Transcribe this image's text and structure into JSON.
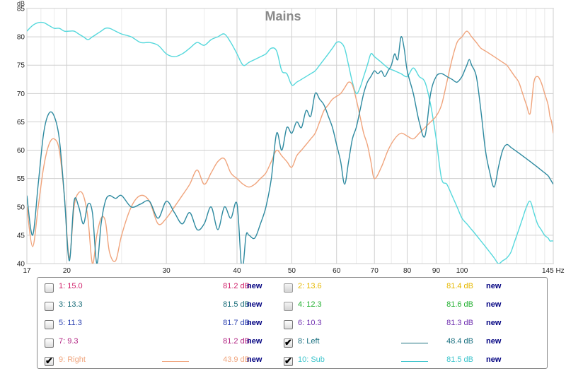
{
  "chart_data": {
    "type": "line",
    "title": "Mains",
    "ylabel": "dB",
    "xlim": [
      17,
      145
    ],
    "ylim": [
      40,
      85
    ],
    "x_scale": "log",
    "grid": true,
    "x_ticks": [
      17,
      20,
      30,
      40,
      50,
      60,
      70,
      80,
      90,
      100,
      145
    ],
    "x_tick_labels": [
      "17",
      "20",
      "30",
      "40",
      "50",
      "60",
      "70",
      "80",
      "90",
      "100",
      "145 Hz"
    ],
    "y_ticks": [
      40,
      45,
      50,
      55,
      60,
      65,
      70,
      75,
      80,
      85
    ],
    "y_tick_labels": [
      "40",
      "45",
      "50",
      "55",
      "60",
      "65",
      "70",
      "75",
      "80",
      "85"
    ],
    "series": [
      {
        "name": "8: Left",
        "color": "#2e8aa0",
        "x": [
          17,
          17.4,
          17.8,
          18.2,
          18.6,
          19,
          19.4,
          19.8,
          20.2,
          20.6,
          21,
          21.4,
          21.8,
          22.2,
          22.6,
          23,
          23.4,
          23.8,
          24.4,
          25,
          26,
          27,
          28,
          29,
          30,
          31,
          32,
          33,
          34,
          35,
          36,
          37,
          38,
          39,
          40,
          40.8,
          41.5,
          42,
          43,
          44,
          45,
          46,
          47,
          48,
          49,
          50,
          51,
          52,
          53,
          54,
          55,
          56,
          57,
          58,
          59,
          60,
          61,
          62,
          63,
          64,
          65,
          66,
          67,
          68,
          69,
          70,
          71,
          72,
          73,
          74,
          75,
          76,
          77,
          78,
          79,
          80,
          82,
          84,
          86,
          88,
          90,
          92,
          94,
          96,
          98,
          100,
          101,
          102,
          103,
          104,
          106,
          108,
          110,
          112,
          114,
          116,
          118,
          120,
          122,
          124,
          126,
          128,
          130,
          132,
          134,
          136,
          138,
          140,
          142,
          143,
          144,
          145
        ],
        "y": [
          52,
          45,
          54,
          63,
          66.5,
          66,
          62,
          52,
          40.5,
          51,
          50,
          47,
          50.5,
          49,
          40,
          47,
          51,
          52,
          51.5,
          52,
          50,
          50.5,
          51,
          48,
          51,
          49,
          47,
          49,
          46,
          47,
          50,
          46,
          50,
          48,
          50.5,
          39,
          45,
          45,
          44.5,
          47,
          50,
          55,
          63,
          60,
          64,
          63,
          65,
          64,
          67,
          66,
          70,
          69,
          68,
          66,
          64,
          61,
          58,
          54,
          58,
          62,
          64,
          67,
          70,
          72,
          73,
          74,
          73.5,
          74,
          73,
          74,
          75,
          77,
          76,
          80,
          78,
          74,
          70,
          65,
          62.5,
          70,
          73,
          73.5,
          73,
          72.5,
          72,
          73,
          74,
          75,
          76,
          75,
          73,
          67,
          60,
          56,
          53.5,
          57,
          60,
          61,
          60.5,
          60,
          59.5,
          59,
          58.5,
          58,
          57.5,
          57,
          56.5,
          56,
          55.5,
          55,
          54.5,
          54
        ]
      },
      {
        "name": "9: Right",
        "color": "#f0a47c",
        "x": [
          17,
          17.4,
          17.8,
          18.2,
          18.6,
          19,
          19.4,
          19.8,
          20.2,
          20.6,
          21,
          21.4,
          21.8,
          22.2,
          22.6,
          23,
          23.4,
          23.8,
          24.4,
          25,
          26,
          27,
          28,
          29,
          30,
          31,
          32,
          33,
          34,
          35,
          36,
          37,
          38,
          39,
          40,
          41,
          42,
          43,
          44,
          45,
          46,
          47,
          48,
          49,
          50,
          51,
          52,
          53,
          54,
          55,
          56,
          57,
          58,
          59,
          60,
          61,
          62,
          63,
          64,
          65,
          66,
          67,
          68,
          69,
          70,
          72,
          74,
          76,
          78,
          80,
          82,
          84,
          86,
          88,
          90,
          92,
          94,
          96,
          98,
          100,
          102,
          104,
          106,
          108,
          110,
          112,
          114,
          116,
          118,
          120,
          122,
          124,
          126,
          128,
          130,
          132,
          134,
          136,
          138,
          140,
          142,
          143,
          144,
          145
        ],
        "y": [
          50,
          43,
          50,
          57,
          61,
          62,
          60,
          52,
          41,
          50,
          52.5,
          52,
          48,
          40,
          45,
          48,
          47.5,
          42,
          40.5,
          45,
          50,
          52,
          51,
          47,
          48,
          50,
          52,
          54,
          56.5,
          54,
          56,
          58,
          58.5,
          56,
          55,
          54,
          53.5,
          54,
          55,
          56,
          58,
          60,
          59,
          58,
          57,
          59,
          60,
          61,
          62,
          63,
          65,
          67,
          68,
          69,
          69.5,
          70,
          71,
          72,
          71.5,
          69,
          66,
          63,
          61,
          58,
          55,
          57,
          60,
          62,
          63,
          62.5,
          62,
          63,
          64,
          65,
          66,
          68,
          72,
          76,
          79,
          80,
          81,
          80,
          79,
          78,
          77.5,
          77,
          76.5,
          76,
          75.5,
          75,
          74,
          73,
          72,
          70,
          68,
          66.5,
          72,
          73,
          72,
          70,
          68,
          66,
          65,
          63
        ]
      },
      {
        "name": "10: Sub",
        "color": "#55d8dc",
        "x": [
          17,
          17.4,
          17.8,
          18.2,
          18.6,
          19,
          19.4,
          19.8,
          20.2,
          20.6,
          21,
          21.4,
          21.8,
          22.2,
          22.6,
          23,
          23.4,
          23.8,
          24.4,
          25,
          26,
          27,
          28,
          29,
          30,
          31,
          32,
          33,
          34,
          35,
          36,
          37,
          38,
          39,
          40,
          41,
          42,
          43,
          44,
          45,
          46,
          47,
          48,
          49,
          50,
          51,
          52,
          53,
          54,
          55,
          56,
          57,
          58,
          59,
          60,
          61,
          62,
          63,
          64,
          65,
          66,
          67,
          68,
          69,
          70,
          72,
          74,
          76,
          78,
          80,
          82,
          84,
          86,
          88,
          90,
          92,
          94,
          96,
          98,
          100,
          102,
          104,
          106,
          108,
          110,
          112,
          114,
          116,
          118,
          120,
          122,
          124,
          126,
          128,
          130,
          132,
          134,
          136,
          138,
          140,
          142,
          143,
          144,
          145
        ],
        "y": [
          81,
          82,
          82.5,
          82.5,
          82,
          81.5,
          81.5,
          81,
          81,
          81,
          80.5,
          80,
          79.5,
          80,
          80.5,
          81,
          81.5,
          81.5,
          81,
          80.5,
          80,
          79,
          79,
          78.5,
          77,
          76.5,
          77,
          78,
          79,
          78.5,
          79.5,
          80,
          80.5,
          79,
          77,
          75,
          75.5,
          76,
          76.5,
          77,
          78,
          77.5,
          74,
          73.5,
          71.5,
          72,
          72.5,
          73,
          73.5,
          74,
          75,
          76,
          77,
          78,
          79,
          79,
          78,
          75,
          72,
          70,
          71,
          73,
          75,
          77,
          76.5,
          75.5,
          74.5,
          74,
          73.5,
          73,
          74.5,
          73,
          72,
          68,
          62,
          55,
          54,
          52,
          50,
          48,
          47,
          46,
          45,
          44,
          43,
          42,
          41,
          40,
          40.5,
          41,
          42,
          44,
          46,
          48,
          50,
          51,
          49,
          47,
          46,
          45,
          44.5,
          44,
          44,
          44
        ]
      }
    ]
  },
  "legend": {
    "items": [
      {
        "label": "1: 15.0",
        "db": "81.2 dB",
        "new": "new",
        "checked": false,
        "disabled": false,
        "color": "#d0206a",
        "swatch": false
      },
      {
        "label": "2: 13.6",
        "db": "81.4 dB",
        "new": "new",
        "checked": false,
        "disabled": true,
        "color": "#e6b800",
        "swatch": false
      },
      {
        "label": "3: 13.3",
        "db": "81.5 dB",
        "new": "new",
        "checked": false,
        "disabled": false,
        "color": "#1a6d7a",
        "swatch": false
      },
      {
        "label": "4: 12.3",
        "db": "81.6 dB",
        "new": "new",
        "checked": false,
        "disabled": true,
        "color": "#22b030",
        "swatch": false
      },
      {
        "label": "5: 11.3",
        "db": "81.7 dB",
        "new": "new",
        "checked": false,
        "disabled": false,
        "color": "#2a40b0",
        "swatch": false
      },
      {
        "label": "6: 10.3",
        "db": "81.3 dB",
        "new": "new",
        "checked": false,
        "disabled": false,
        "color": "#7030b0",
        "swatch": false
      },
      {
        "label": "7: 9.3",
        "db": "81.2 dB",
        "new": "new",
        "checked": false,
        "disabled": false,
        "color": "#b02080",
        "swatch": false
      },
      {
        "label": "8: Left",
        "db": "48.4 dB",
        "new": "new",
        "checked": true,
        "disabled": false,
        "color": "#1a7080",
        "swatch": true
      },
      {
        "label": "9: Right",
        "db": "43.9 dB",
        "new": "new",
        "checked": true,
        "disabled": false,
        "color": "#f0a47c",
        "swatch": true
      },
      {
        "label": "10: Sub",
        "db": "81.5 dB",
        "new": "new",
        "checked": true,
        "disabled": false,
        "color": "#3cc4cc",
        "swatch": true
      }
    ],
    "check_mark": "✔"
  }
}
